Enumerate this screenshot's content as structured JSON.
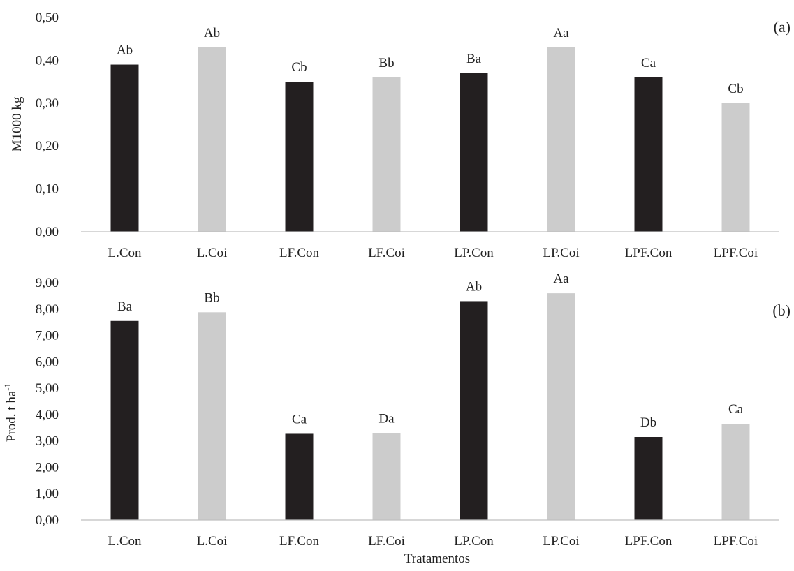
{
  "colors": {
    "con": "#231f20",
    "coi": "#cccccc",
    "axis": "#bfbfbf"
  },
  "chart_data": [
    {
      "type": "bar",
      "panel_label": "(a)",
      "ylabel": "M1000 kg",
      "ylim": [
        0,
        0.5
      ],
      "yticks": [
        "0,00",
        "0,10",
        "0,20",
        "0,30",
        "0,40",
        "0,50"
      ],
      "categories": [
        "L.Con",
        "L.Coi",
        "LF.Con",
        "LF.Coi",
        "LP.Con",
        "LP.Coi",
        "LPF.Con",
        "LPF.Coi"
      ],
      "values": [
        0.39,
        0.43,
        0.35,
        0.36,
        0.37,
        0.43,
        0.36,
        0.3
      ],
      "labels": [
        "Ab",
        "Ab",
        "Cb",
        "Bb",
        "Ba",
        "Aa",
        "Ca",
        "Cb"
      ],
      "grid": false
    },
    {
      "type": "bar",
      "panel_label": "(b)",
      "ylabel_main": "Prod. t ha",
      "ylabel_sup": "-1",
      "xlabel": "Tratamentos",
      "ylim": [
        0,
        9
      ],
      "yticks": [
        "0,00",
        "1,00",
        "2,00",
        "3,00",
        "4,00",
        "5,00",
        "6,00",
        "7,00",
        "8,00",
        "9,00"
      ],
      "categories": [
        "L.Con",
        "L.Coi",
        "LF.Con",
        "LF.Coi",
        "LP.Con",
        "LP.Coi",
        "LPF.Con",
        "LPF.Coi"
      ],
      "values": [
        7.55,
        7.88,
        3.27,
        3.3,
        8.3,
        8.6,
        3.15,
        3.65
      ],
      "labels": [
        "Ba",
        "Bb",
        "Ca",
        "Da",
        "Ab",
        "Aa",
        "Db",
        "Ca"
      ],
      "grid": false
    }
  ]
}
